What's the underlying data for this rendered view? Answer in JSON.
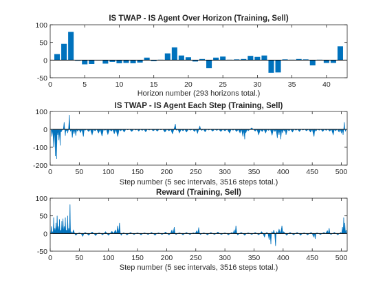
{
  "colors": {
    "bar": "#0072BD",
    "area": "#0072BD",
    "axis": "#262626",
    "zero": "#000000",
    "background": "#FFFFFF"
  },
  "chart_data": [
    {
      "type": "bar",
      "title": "IS TWAP - IS Agent Over Horizon (Training, Sell)",
      "xlabel": "Horizon number (293 horizons total.)",
      "ylabel": "",
      "xlim": [
        0,
        43
      ],
      "ylim": [
        -50,
        100
      ],
      "xticks": [
        0,
        5,
        10,
        15,
        20,
        25,
        30,
        35,
        40
      ],
      "yticks": [
        -50,
        0,
        50,
        100
      ],
      "x": [
        1,
        2,
        3,
        4,
        5,
        6,
        7,
        8,
        9,
        10,
        11,
        12,
        13,
        14,
        15,
        16,
        17,
        18,
        19,
        20,
        21,
        22,
        23,
        24,
        25,
        26,
        27,
        28,
        29,
        30,
        31,
        32,
        33,
        34,
        35,
        36,
        37,
        38,
        39,
        40,
        41,
        42
      ],
      "values": [
        17,
        46,
        80,
        -2,
        -12,
        -11,
        0,
        -10,
        -5,
        -9,
        -8,
        -9,
        -7,
        7,
        -3,
        1,
        19,
        36,
        13,
        8,
        -4,
        3,
        -23,
        7,
        10,
        1,
        2,
        3,
        12,
        9,
        13,
        -36,
        -35,
        2,
        1,
        3,
        2,
        -15,
        1,
        -8,
        -8,
        39
      ]
    },
    {
      "type": "area",
      "title": "IS TWAP - IS Agent Each Step (Training, Sell)",
      "xlabel": "Step number (5 sec intervals, 3516 steps total.)",
      "ylabel": "",
      "xlim": [
        0,
        510
      ],
      "ylim": [
        -200,
        100
      ],
      "xticks": [
        0,
        50,
        100,
        150,
        200,
        250,
        300,
        350,
        400,
        450,
        500
      ],
      "yticks": [
        -200,
        -100,
        0,
        100
      ],
      "spikes": [
        {
          "x": 0,
          "y": 0
        },
        {
          "x": 3,
          "y": -40
        },
        {
          "x": 6,
          "y": -100
        },
        {
          "x": 9,
          "y": -150
        },
        {
          "x": 11,
          "y": -165
        },
        {
          "x": 13,
          "y": -30
        },
        {
          "x": 15,
          "y": -60
        },
        {
          "x": 17,
          "y": -90
        },
        {
          "x": 19,
          "y": -15
        },
        {
          "x": 21,
          "y": -5
        },
        {
          "x": 24,
          "y": 40
        },
        {
          "x": 26,
          "y": -35
        },
        {
          "x": 28,
          "y": -8
        },
        {
          "x": 30,
          "y": -20
        },
        {
          "x": 33,
          "y": 80
        },
        {
          "x": 35,
          "y": -10
        },
        {
          "x": 38,
          "y": -45
        },
        {
          "x": 41,
          "y": -25
        },
        {
          "x": 44,
          "y": -35
        },
        {
          "x": 47,
          "y": -10
        },
        {
          "x": 52,
          "y": -18
        },
        {
          "x": 57,
          "y": -40
        },
        {
          "x": 60,
          "y": -5
        },
        {
          "x": 66,
          "y": -12
        },
        {
          "x": 72,
          "y": -30
        },
        {
          "x": 77,
          "y": -8
        },
        {
          "x": 83,
          "y": -20
        },
        {
          "x": 89,
          "y": -38
        },
        {
          "x": 94,
          "y": -6
        },
        {
          "x": 99,
          "y": -28
        },
        {
          "x": 105,
          "y": -10
        },
        {
          "x": 110,
          "y": -24
        },
        {
          "x": 116,
          "y": -40
        },
        {
          "x": 121,
          "y": -8
        },
        {
          "x": 127,
          "y": -15
        },
        {
          "x": 133,
          "y": -3
        },
        {
          "x": 140,
          "y": -12
        },
        {
          "x": 147,
          "y": -4
        },
        {
          "x": 152,
          "y": -10
        },
        {
          "x": 158,
          "y": -6
        },
        {
          "x": 164,
          "y": -14
        },
        {
          "x": 170,
          "y": -4
        },
        {
          "x": 177,
          "y": -8
        },
        {
          "x": 184,
          "y": -10
        },
        {
          "x": 190,
          "y": -3
        },
        {
          "x": 197,
          "y": -15
        },
        {
          "x": 204,
          "y": -8
        },
        {
          "x": 210,
          "y": -25
        },
        {
          "x": 215,
          "y": 30
        },
        {
          "x": 217,
          "y": -5
        },
        {
          "x": 222,
          "y": -20
        },
        {
          "x": 228,
          "y": -8
        },
        {
          "x": 234,
          "y": -15
        },
        {
          "x": 241,
          "y": -5
        },
        {
          "x": 248,
          "y": -12
        },
        {
          "x": 253,
          "y": -22
        },
        {
          "x": 257,
          "y": 18
        },
        {
          "x": 260,
          "y": -6
        },
        {
          "x": 266,
          "y": -14
        },
        {
          "x": 272,
          "y": -4
        },
        {
          "x": 279,
          "y": -10
        },
        {
          "x": 286,
          "y": -6
        },
        {
          "x": 293,
          "y": -12
        },
        {
          "x": 300,
          "y": -8
        },
        {
          "x": 308,
          "y": -20
        },
        {
          "x": 314,
          "y": -5
        },
        {
          "x": 320,
          "y": -12
        },
        {
          "x": 326,
          "y": -20
        },
        {
          "x": 331,
          "y": -40
        },
        {
          "x": 334,
          "y": -55
        },
        {
          "x": 336,
          "y": -20
        },
        {
          "x": 340,
          "y": -8
        },
        {
          "x": 346,
          "y": 8
        },
        {
          "x": 352,
          "y": -10
        },
        {
          "x": 358,
          "y": -30
        },
        {
          "x": 364,
          "y": -12
        },
        {
          "x": 370,
          "y": -20
        },
        {
          "x": 375,
          "y": -6
        },
        {
          "x": 381,
          "y": -32
        },
        {
          "x": 386,
          "y": -12
        },
        {
          "x": 390,
          "y": -48
        },
        {
          "x": 393,
          "y": -30
        },
        {
          "x": 396,
          "y": -55
        },
        {
          "x": 399,
          "y": -20
        },
        {
          "x": 402,
          "y": -10
        },
        {
          "x": 405,
          "y": -30
        },
        {
          "x": 410,
          "y": -8
        },
        {
          "x": 416,
          "y": -15
        },
        {
          "x": 422,
          "y": -5
        },
        {
          "x": 428,
          "y": -12
        },
        {
          "x": 434,
          "y": -4
        },
        {
          "x": 440,
          "y": -8
        },
        {
          "x": 447,
          "y": -15
        },
        {
          "x": 453,
          "y": -40
        },
        {
          "x": 456,
          "y": -10
        },
        {
          "x": 462,
          "y": -5
        },
        {
          "x": 468,
          "y": -12
        },
        {
          "x": 474,
          "y": -6
        },
        {
          "x": 480,
          "y": -10
        },
        {
          "x": 486,
          "y": -30
        },
        {
          "x": 490,
          "y": -8
        },
        {
          "x": 496,
          "y": -15
        },
        {
          "x": 500,
          "y": -20
        },
        {
          "x": 503,
          "y": -30
        },
        {
          "x": 505,
          "y": 40
        },
        {
          "x": 507,
          "y": -10
        },
        {
          "x": 510,
          "y": 0
        }
      ]
    },
    {
      "type": "area",
      "title": "Reward (Training, Sell)",
      "xlabel": "Step number (5 sec intervals, 3516 steps total.)",
      "ylabel": "",
      "xlim": [
        0,
        510
      ],
      "ylim": [
        -50,
        100
      ],
      "xticks": [
        0,
        50,
        100,
        150,
        200,
        250,
        300,
        350,
        400,
        450,
        500
      ],
      "yticks": [
        -50,
        0,
        50,
        100
      ],
      "spikes": [
        {
          "x": 0,
          "y": 0
        },
        {
          "x": 2,
          "y": 20
        },
        {
          "x": 4,
          "y": 5
        },
        {
          "x": 6,
          "y": 45
        },
        {
          "x": 8,
          "y": 15
        },
        {
          "x": 10,
          "y": 30
        },
        {
          "x": 12,
          "y": 50
        },
        {
          "x": 14,
          "y": 20
        },
        {
          "x": 16,
          "y": 40
        },
        {
          "x": 18,
          "y": 10
        },
        {
          "x": 20,
          "y": 35
        },
        {
          "x": 22,
          "y": 42
        },
        {
          "x": 24,
          "y": 20
        },
        {
          "x": 26,
          "y": 45
        },
        {
          "x": 28,
          "y": 10
        },
        {
          "x": 30,
          "y": 50
        },
        {
          "x": 32,
          "y": 15
        },
        {
          "x": 34,
          "y": 82
        },
        {
          "x": 36,
          "y": 5
        },
        {
          "x": 40,
          "y": 10
        },
        {
          "x": 44,
          "y": -5
        },
        {
          "x": 50,
          "y": 2
        },
        {
          "x": 56,
          "y": -8
        },
        {
          "x": 60,
          "y": 3
        },
        {
          "x": 66,
          "y": -5
        },
        {
          "x": 72,
          "y": 4
        },
        {
          "x": 78,
          "y": -6
        },
        {
          "x": 84,
          "y": 2
        },
        {
          "x": 90,
          "y": -4
        },
        {
          "x": 95,
          "y": 5
        },
        {
          "x": 100,
          "y": -5
        },
        {
          "x": 106,
          "y": 6
        },
        {
          "x": 112,
          "y": 10
        },
        {
          "x": 116,
          "y": 22
        },
        {
          "x": 119,
          "y": 30
        },
        {
          "x": 122,
          "y": -5
        },
        {
          "x": 126,
          "y": 2
        },
        {
          "x": 132,
          "y": -4
        },
        {
          "x": 138,
          "y": 3
        },
        {
          "x": 144,
          "y": -3
        },
        {
          "x": 150,
          "y": 2
        },
        {
          "x": 156,
          "y": -4
        },
        {
          "x": 162,
          "y": 2
        },
        {
          "x": 168,
          "y": -3
        },
        {
          "x": 174,
          "y": 3
        },
        {
          "x": 180,
          "y": -5
        },
        {
          "x": 186,
          "y": 2
        },
        {
          "x": 192,
          "y": -3
        },
        {
          "x": 198,
          "y": 4
        },
        {
          "x": 204,
          "y": -4
        },
        {
          "x": 209,
          "y": 10
        },
        {
          "x": 213,
          "y": 18
        },
        {
          "x": 216,
          "y": -3
        },
        {
          "x": 222,
          "y": 2
        },
        {
          "x": 228,
          "y": -4
        },
        {
          "x": 234,
          "y": 3
        },
        {
          "x": 240,
          "y": -3
        },
        {
          "x": 246,
          "y": 2
        },
        {
          "x": 252,
          "y": 8
        },
        {
          "x": 255,
          "y": 17
        },
        {
          "x": 258,
          "y": -3
        },
        {
          "x": 264,
          "y": 2
        },
        {
          "x": 270,
          "y": -4
        },
        {
          "x": 276,
          "y": 3
        },
        {
          "x": 282,
          "y": -3
        },
        {
          "x": 288,
          "y": 4
        },
        {
          "x": 294,
          "y": -3
        },
        {
          "x": 300,
          "y": 2
        },
        {
          "x": 306,
          "y": -4
        },
        {
          "x": 312,
          "y": 3
        },
        {
          "x": 316,
          "y": 10
        },
        {
          "x": 319,
          "y": 22
        },
        {
          "x": 322,
          "y": -4
        },
        {
          "x": 328,
          "y": 3
        },
        {
          "x": 334,
          "y": -5
        },
        {
          "x": 340,
          "y": 2
        },
        {
          "x": 346,
          "y": -3
        },
        {
          "x": 352,
          "y": 3
        },
        {
          "x": 358,
          "y": -4
        },
        {
          "x": 363,
          "y": 5
        },
        {
          "x": 368,
          "y": -10
        },
        {
          "x": 372,
          "y": 3
        },
        {
          "x": 376,
          "y": -18
        },
        {
          "x": 379,
          "y": -30
        },
        {
          "x": 381,
          "y": 5
        },
        {
          "x": 384,
          "y": 10
        },
        {
          "x": 387,
          "y": -35
        },
        {
          "x": 389,
          "y": 5
        },
        {
          "x": 393,
          "y": 12
        },
        {
          "x": 398,
          "y": 22
        },
        {
          "x": 401,
          "y": 5
        },
        {
          "x": 406,
          "y": -5
        },
        {
          "x": 412,
          "y": 3
        },
        {
          "x": 418,
          "y": -4
        },
        {
          "x": 424,
          "y": 3
        },
        {
          "x": 430,
          "y": -5
        },
        {
          "x": 436,
          "y": 2
        },
        {
          "x": 442,
          "y": -4
        },
        {
          "x": 448,
          "y": 3
        },
        {
          "x": 452,
          "y": -10
        },
        {
          "x": 455,
          "y": -15
        },
        {
          "x": 458,
          "y": 2
        },
        {
          "x": 464,
          "y": -3
        },
        {
          "x": 470,
          "y": 3
        },
        {
          "x": 476,
          "y": 8
        },
        {
          "x": 479,
          "y": 15
        },
        {
          "x": 482,
          "y": -3
        },
        {
          "x": 488,
          "y": 3
        },
        {
          "x": 494,
          "y": -4
        },
        {
          "x": 499,
          "y": 3
        },
        {
          "x": 502,
          "y": 18
        },
        {
          "x": 504,
          "y": 45
        },
        {
          "x": 506,
          "y": 30
        },
        {
          "x": 508,
          "y": 10
        },
        {
          "x": 510,
          "y": 0
        }
      ]
    }
  ]
}
